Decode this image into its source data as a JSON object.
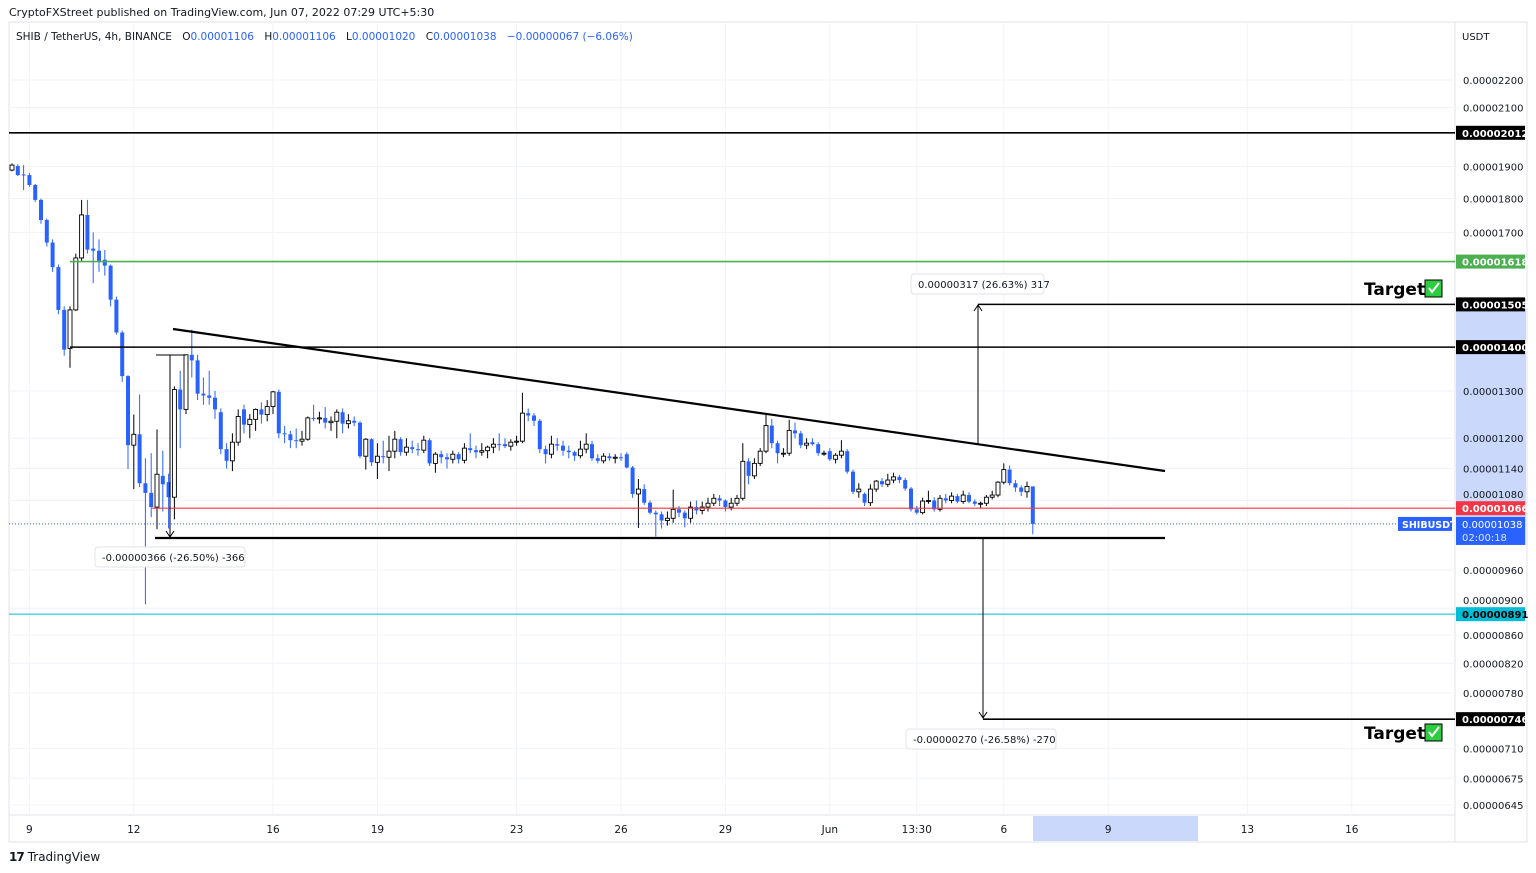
{
  "header": {
    "published": "CryptoFXStreet published on TradingView.com, Jun 07, 2022 07:29 UTC+5:30"
  },
  "legend": {
    "symbol": "SHIB / TetherUS, 4h, BINANCE",
    "o_label": "O",
    "o": "0.00001106",
    "h_label": "H",
    "h": "0.00001106",
    "l_label": "L",
    "l": "0.00001020",
    "c_label": "C",
    "c": "0.00001038",
    "change": "−0.00000067 (−6.06%)"
  },
  "chart_data": {
    "type": "candlestick",
    "timeframe": "4h",
    "y_scale": "log",
    "ylabel": "USDT",
    "grid": true,
    "colors": {
      "up": "#000000",
      "down": "#2962ff",
      "background": "#ffffff"
    },
    "y_ticks": [
      "0.00002200",
      "0.00002100",
      "0.00001900",
      "0.00001800",
      "0.00001700",
      "0.00001300",
      "0.00001200",
      "0.00001140",
      "0.00001080",
      "0.00000960",
      "0.00000900",
      "0.00000860",
      "0.00000820",
      "0.00000780",
      "0.00000710",
      "0.00000675",
      "0.00000645"
    ],
    "x_ticks": [
      "9",
      "12",
      "16",
      "19",
      "23",
      "26",
      "29",
      "Jun",
      "13:30",
      "6",
      "9",
      "13",
      "16"
    ],
    "levels": [
      {
        "price": "0.00002012",
        "color": "#000000"
      },
      {
        "price": "0.00001618",
        "color": "#4caf50"
      },
      {
        "price": "0.00001505",
        "color": "#000000"
      },
      {
        "price": "0.00001400",
        "color": "#000000"
      },
      {
        "price": "0.00001066",
        "color": "#f23645"
      },
      {
        "price": "0.00000891",
        "color": "#00bcd4"
      },
      {
        "price": "0.00000746",
        "color": "#000000"
      }
    ],
    "last_price": {
      "symbol": "SHIBUSDT",
      "price": "0.00001038",
      "countdown": "02:00:18",
      "color": "#2962ff"
    },
    "measures": [
      {
        "label": "-0.00000366 (-26.50%) -366"
      },
      {
        "label": "0.00000317 (26.63%) 317"
      },
      {
        "label": "-0.00000270 (-26.58%) -270"
      }
    ],
    "annotations": [
      {
        "text": "Target",
        "icon": "check-icon"
      },
      {
        "text": "Target",
        "icon": "check-icon"
      }
    ],
    "candles": [
      [
        1.889e-05,
        1.91e-05,
        1.885e-05,
        1.905e-05
      ],
      [
        1.902e-05,
        1.908e-05,
        1.87e-05,
        1.873e-05
      ],
      [
        1.875e-05,
        1.905e-05,
        1.826e-05,
        1.873e-05
      ],
      [
        1.873e-05,
        1.88e-05,
        1.836e-05,
        1.842e-05
      ],
      [
        1.842e-05,
        1.845e-05,
        1.79e-05,
        1.796e-05
      ],
      [
        1.796e-05,
        1.8e-05,
        1.725e-05,
        1.736e-05
      ],
      [
        1.736e-05,
        1.74e-05,
        1.66e-05,
        1.671e-05
      ],
      [
        1.671e-05,
        1.68e-05,
        1.59e-05,
        1.603e-05
      ],
      [
        1.603e-05,
        1.61e-05,
        1.48e-05,
        1.491e-05
      ],
      [
        1.491e-05,
        1.5e-05,
        1.38e-05,
        1.394e-05
      ],
      [
        1.397e-05,
        1.5e-05,
        1.352e-05,
        1.491e-05
      ],
      [
        1.491e-05,
        1.64e-05,
        1.488e-05,
        1.628e-05
      ],
      [
        1.628e-05,
        1.796e-05,
        1.62e-05,
        1.751e-05
      ],
      [
        1.751e-05,
        1.796e-05,
        1.64e-05,
        1.651e-05
      ],
      [
        1.654e-05,
        1.7e-05,
        1.56e-05,
        1.648e-05
      ],
      [
        1.648e-05,
        1.68e-05,
        1.59e-05,
        1.62e-05
      ],
      [
        1.623e-05,
        1.65e-05,
        1.58e-05,
        1.607e-05
      ],
      [
        1.607e-05,
        1.61e-05,
        1.5e-05,
        1.517e-05
      ],
      [
        1.517e-05,
        1.525e-05,
        1.43e-05,
        1.435e-05
      ],
      [
        1.435e-05,
        1.44e-05,
        1.32e-05,
        1.333e-05
      ],
      [
        1.333e-05,
        1.335e-05,
        1.139e-05,
        1.186e-05
      ],
      [
        1.186e-05,
        1.249e-05,
        1.101e-05,
        1.208e-05
      ],
      [
        1.208e-05,
        1.292e-05,
        1.105e-05,
        1.112e-05
      ],
      [
        1.112e-05,
        1.16e-05,
        9.06e-06,
        1.094e-05
      ],
      [
        1.094e-05,
        1.17e-05,
        1.05e-05,
        1.068e-05
      ],
      [
        1.068e-05,
        1.218e-05,
        1.029e-05,
        1.129e-05
      ],
      [
        1.126e-05,
        1.175e-05,
        1.06e-05,
        1.11e-05
      ],
      [
        1.114e-05,
        1.13e-05,
        1.03e-05,
        1.086e-05
      ],
      [
        1.086e-05,
        1.31e-05,
        1.046e-05,
        1.303e-05
      ],
      [
        1.303e-05,
        1.345e-05,
        1.18e-05,
        1.26e-05
      ],
      [
        1.26e-05,
        1.382e-05,
        1.25e-05,
        1.382e-05
      ],
      [
        1.382e-05,
        1.442e-05,
        1.33e-05,
        1.369e-05
      ],
      [
        1.369e-05,
        1.382e-05,
        1.28e-05,
        1.294e-05
      ],
      [
        1.294e-05,
        1.33e-05,
        1.27e-05,
        1.29e-05
      ],
      [
        1.29e-05,
        1.345e-05,
        1.27e-05,
        1.285e-05
      ],
      [
        1.285e-05,
        1.3e-05,
        1.24e-05,
        1.26e-05
      ],
      [
        1.254e-05,
        1.262e-05,
        1.168e-05,
        1.178e-05
      ],
      [
        1.178e-05,
        1.19e-05,
        1.14e-05,
        1.155e-05
      ],
      [
        1.155e-05,
        1.21e-05,
        1.135e-05,
        1.192e-05
      ],
      [
        1.192e-05,
        1.26e-05,
        1.185e-05,
        1.245e-05
      ],
      [
        1.26e-05,
        1.27e-05,
        1.21e-05,
        1.228e-05
      ],
      [
        1.228e-05,
        1.25e-05,
        1.2e-05,
        1.239e-05
      ],
      [
        1.239e-05,
        1.262e-05,
        1.215e-05,
        1.26e-05
      ],
      [
        1.26e-05,
        1.275e-05,
        1.23e-05,
        1.249e-05
      ],
      [
        1.249e-05,
        1.28e-05,
        1.235e-05,
        1.266e-05
      ],
      [
        1.266e-05,
        1.3e-05,
        1.25e-05,
        1.298e-05
      ],
      [
        1.298e-05,
        1.303e-05,
        1.2e-05,
        1.21e-05
      ],
      [
        1.21e-05,
        1.225e-05,
        1.19e-05,
        1.208e-05
      ],
      [
        1.208e-05,
        1.215e-05,
        1.18e-05,
        1.196e-05
      ],
      [
        1.196e-05,
        1.22e-05,
        1.18e-05,
        1.194e-05
      ],
      [
        1.194e-05,
        1.215e-05,
        1.185e-05,
        1.198e-05
      ],
      [
        1.198e-05,
        1.245e-05,
        1.195e-05,
        1.242e-05
      ],
      [
        1.242e-05,
        1.27e-05,
        1.235e-05,
        1.24e-05
      ],
      [
        1.24e-05,
        1.255e-05,
        1.23e-05,
        1.242e-05
      ],
      [
        1.242e-05,
        1.265e-05,
        1.22e-05,
        1.232e-05
      ],
      [
        1.232e-05,
        1.245e-05,
        1.215e-05,
        1.235e-05
      ],
      [
        1.235e-05,
        1.26e-05,
        1.2e-05,
        1.254e-05
      ],
      [
        1.254e-05,
        1.262e-05,
        1.21e-05,
        1.23e-05
      ],
      [
        1.23e-05,
        1.25e-05,
        1.22e-05,
        1.236e-05
      ],
      [
        1.236e-05,
        1.245e-05,
        1.225e-05,
        1.232e-05
      ],
      [
        1.232e-05,
        1.235e-05,
        1.16e-05,
        1.164e-05
      ],
      [
        1.164e-05,
        1.2e-05,
        1.138e-05,
        1.198e-05
      ],
      [
        1.198e-05,
        1.2e-05,
        1.145e-05,
        1.152e-05
      ],
      [
        1.152e-05,
        1.19e-05,
        1.12e-05,
        1.164e-05
      ],
      [
        1.164e-05,
        1.195e-05,
        1.15e-05,
        1.162e-05
      ],
      [
        1.162e-05,
        1.205e-05,
        1.135e-05,
        1.174e-05
      ],
      [
        1.174e-05,
        1.215e-05,
        1.16e-05,
        1.198e-05
      ],
      [
        1.198e-05,
        1.202e-05,
        1.165e-05,
        1.172e-05
      ],
      [
        1.172e-05,
        1.2e-05,
        1.165e-05,
        1.182e-05
      ],
      [
        1.182e-05,
        1.195e-05,
        1.17e-05,
        1.178e-05
      ],
      [
        1.178e-05,
        1.19e-05,
        1.165e-05,
        1.176e-05
      ],
      [
        1.176e-05,
        1.205e-05,
        1.17e-05,
        1.196e-05
      ],
      [
        1.196e-05,
        1.2e-05,
        1.145e-05,
        1.15e-05
      ],
      [
        1.15e-05,
        1.172e-05,
        1.132e-05,
        1.168e-05
      ],
      [
        1.168e-05,
        1.175e-05,
        1.15e-05,
        1.162e-05
      ],
      [
        1.162e-05,
        1.17e-05,
        1.14e-05,
        1.158e-05
      ],
      [
        1.158e-05,
        1.175e-05,
        1.15e-05,
        1.168e-05
      ],
      [
        1.168e-05,
        1.172e-05,
        1.15e-05,
        1.158e-05
      ],
      [
        1.156e-05,
        1.19e-05,
        1.15e-05,
        1.18e-05
      ],
      [
        1.18e-05,
        1.21e-05,
        1.17e-05,
        1.176e-05
      ],
      [
        1.176e-05,
        1.185e-05,
        1.16e-05,
        1.172e-05
      ],
      [
        1.172e-05,
        1.19e-05,
        1.165e-05,
        1.175e-05
      ],
      [
        1.175e-05,
        1.185e-05,
        1.16e-05,
        1.182e-05
      ],
      [
        1.182e-05,
        1.2e-05,
        1.17e-05,
        1.188e-05
      ],
      [
        1.188e-05,
        1.21e-05,
        1.175e-05,
        1.186e-05
      ],
      [
        1.188e-05,
        1.2e-05,
        1.18e-05,
        1.184e-05
      ],
      [
        1.184e-05,
        1.198e-05,
        1.175e-05,
        1.192e-05
      ],
      [
        1.192e-05,
        1.205e-05,
        1.185e-05,
        1.194e-05
      ],
      [
        1.194e-05,
        1.296e-05,
        1.19e-05,
        1.252e-05
      ],
      [
        1.252e-05,
        1.262e-05,
        1.235e-05,
        1.247e-05
      ],
      [
        1.247e-05,
        1.252e-05,
        1.225e-05,
        1.236e-05
      ],
      [
        1.236e-05,
        1.24e-05,
        1.17e-05,
        1.178e-05
      ],
      [
        1.178e-05,
        1.185e-05,
        1.15e-05,
        1.168e-05
      ],
      [
        1.168e-05,
        1.205e-05,
        1.16e-05,
        1.188e-05
      ],
      [
        1.188e-05,
        1.2e-05,
        1.175e-05,
        1.185e-05
      ],
      [
        1.185e-05,
        1.195e-05,
        1.165e-05,
        1.175e-05
      ],
      [
        1.175e-05,
        1.185e-05,
        1.16e-05,
        1.172e-05
      ],
      [
        1.172e-05,
        1.175e-05,
        1.155e-05,
        1.165e-05
      ],
      [
        1.165e-05,
        1.195e-05,
        1.16e-05,
        1.178e-05
      ],
      [
        1.178e-05,
        1.21e-05,
        1.17e-05,
        1.188e-05
      ],
      [
        1.188e-05,
        1.195e-05,
        1.155e-05,
        1.16e-05
      ],
      [
        1.16e-05,
        1.168e-05,
        1.15e-05,
        1.155e-05
      ],
      [
        1.155e-05,
        1.17e-05,
        1.15e-05,
        1.164e-05
      ],
      [
        1.164e-05,
        1.17e-05,
        1.155e-05,
        1.16e-05
      ],
      [
        1.16e-05,
        1.168e-05,
        1.15e-05,
        1.162e-05
      ],
      [
        1.162e-05,
        1.17e-05,
        1.155e-05,
        1.16e-05
      ],
      [
        1.168e-05,
        1.172e-05,
        1.14e-05,
        1.142e-05
      ],
      [
        1.142e-05,
        1.145e-05,
        1.085e-05,
        1.092e-05
      ],
      [
        1.092e-05,
        1.12e-05,
        1.031e-05,
        1.101e-05
      ],
      [
        1.101e-05,
        1.11e-05,
        1.072e-05,
        1.076e-05
      ],
      [
        1.076e-05,
        1.08e-05,
        1.055e-05,
        1.058e-05
      ],
      [
        1.058e-05,
        1.062e-05,
        1.016e-05,
        1.055e-05
      ],
      [
        1.055e-05,
        1.06e-05,
        1.03e-05,
        1.044e-05
      ],
      [
        1.044e-05,
        1.06e-05,
        1.035e-05,
        1.048e-05
      ],
      [
        1.048e-05,
        1.1e-05,
        1.04e-05,
        1.064e-05
      ],
      [
        1.064e-05,
        1.07e-05,
        1.05e-05,
        1.058e-05
      ],
      [
        1.058e-05,
        1.062e-05,
        1.032e-05,
        1.048e-05
      ],
      [
        1.048e-05,
        1.078e-05,
        1.04e-05,
        1.068e-05
      ],
      [
        1.068e-05,
        1.08e-05,
        1.055e-05,
        1.062e-05
      ],
      [
        1.062e-05,
        1.078e-05,
        1.055e-05,
        1.068e-05
      ],
      [
        1.068e-05,
        1.085e-05,
        1.06e-05,
        1.075e-05
      ],
      [
        1.075e-05,
        1.092e-05,
        1.07e-05,
        1.084e-05
      ],
      [
        1.084e-05,
        1.09e-05,
        1.07e-05,
        1.08e-05
      ],
      [
        1.08e-05,
        1.082e-05,
        1.06e-05,
        1.068e-05
      ],
      [
        1.068e-05,
        1.085e-05,
        1.062e-05,
        1.075e-05
      ],
      [
        1.075e-05,
        1.09e-05,
        1.07e-05,
        1.084e-05
      ],
      [
        1.084e-05,
        1.19e-05,
        1.08e-05,
        1.154e-05
      ],
      [
        1.154e-05,
        1.16e-05,
        1.11e-05,
        1.126e-05
      ],
      [
        1.126e-05,
        1.16e-05,
        1.12e-05,
        1.15e-05
      ],
      [
        1.15e-05,
        1.18e-05,
        1.145e-05,
        1.174e-05
      ],
      [
        1.174e-05,
        1.249e-05,
        1.17e-05,
        1.226e-05
      ],
      [
        1.226e-05,
        1.24e-05,
        1.18e-05,
        1.19e-05
      ],
      [
        1.19e-05,
        1.195e-05,
        1.15e-05,
        1.17e-05
      ],
      [
        1.17e-05,
        1.18e-05,
        1.162e-05,
        1.17e-05
      ],
      [
        1.17e-05,
        1.238e-05,
        1.165e-05,
        1.216e-05
      ],
      [
        1.216e-05,
        1.232e-05,
        1.2e-05,
        1.21e-05
      ],
      [
        1.21e-05,
        1.215e-05,
        1.18e-05,
        1.186e-05
      ],
      [
        1.186e-05,
        1.2e-05,
        1.178e-05,
        1.19e-05
      ],
      [
        1.192e-05,
        1.2e-05,
        1.185e-05,
        1.188e-05
      ],
      [
        1.188e-05,
        1.192e-05,
        1.165e-05,
        1.17e-05
      ],
      [
        1.17e-05,
        1.175e-05,
        1.165e-05,
        1.17e-05
      ],
      [
        1.174e-05,
        1.18e-05,
        1.155e-05,
        1.158e-05
      ],
      [
        1.158e-05,
        1.17e-05,
        1.15e-05,
        1.166e-05
      ],
      [
        1.166e-05,
        1.196e-05,
        1.16e-05,
        1.174e-05
      ],
      [
        1.174e-05,
        1.178e-05,
        1.13e-05,
        1.134e-05
      ],
      [
        1.134e-05,
        1.138e-05,
        1.092e-05,
        1.096e-05
      ],
      [
        1.096e-05,
        1.112e-05,
        1.085e-05,
        1.101e-05
      ],
      [
        1.092e-05,
        1.095e-05,
        1.07e-05,
        1.076e-05
      ],
      [
        1.076e-05,
        1.11e-05,
        1.07e-05,
        1.101e-05
      ],
      [
        1.101e-05,
        1.118e-05,
        1.096e-05,
        1.116e-05
      ],
      [
        1.116e-05,
        1.122e-05,
        1.105e-05,
        1.11e-05
      ],
      [
        1.11e-05,
        1.13e-05,
        1.105e-05,
        1.118e-05
      ],
      [
        1.118e-05,
        1.132e-05,
        1.112e-05,
        1.124e-05
      ],
      [
        1.124e-05,
        1.128e-05,
        1.112e-05,
        1.118e-05
      ],
      [
        1.118e-05,
        1.122e-05,
        1.098e-05,
        1.102e-05
      ],
      [
        1.102e-05,
        1.105e-05,
        1.06e-05,
        1.064e-05
      ],
      [
        1.064e-05,
        1.07e-05,
        1.055e-05,
        1.058e-05
      ],
      [
        1.058e-05,
        1.085e-05,
        1.055e-05,
        1.079e-05
      ],
      [
        1.079e-05,
        1.098e-05,
        1.074e-05,
        1.08e-05
      ],
      [
        1.08e-05,
        1.086e-05,
        1.06e-05,
        1.064e-05
      ],
      [
        1.064e-05,
        1.09e-05,
        1.06e-05,
        1.084e-05
      ],
      [
        1.084e-05,
        1.092e-05,
        1.075e-05,
        1.08e-05
      ],
      [
        1.08e-05,
        1.095e-05,
        1.075e-05,
        1.088e-05
      ],
      [
        1.088e-05,
        1.092e-05,
        1.075e-05,
        1.078e-05
      ],
      [
        1.078e-05,
        1.098e-05,
        1.074e-05,
        1.09e-05
      ],
      [
        1.09e-05,
        1.095e-05,
        1.075e-05,
        1.078e-05
      ],
      [
        1.078e-05,
        1.082e-05,
        1.07e-05,
        1.074e-05
      ],
      [
        1.074e-05,
        1.078e-05,
        1.066e-05,
        1.075e-05
      ],
      [
        1.075e-05,
        1.09e-05,
        1.07e-05,
        1.086e-05
      ],
      [
        1.086e-05,
        1.098e-05,
        1.082e-05,
        1.09e-05
      ],
      [
        1.09e-05,
        1.116e-05,
        1.086e-05,
        1.114e-05
      ],
      [
        1.114e-05,
        1.15e-05,
        1.11e-05,
        1.138e-05
      ],
      [
        1.138e-05,
        1.146e-05,
        1.108e-05,
        1.112e-05
      ],
      [
        1.112e-05,
        1.118e-05,
        1.096e-05,
        1.104e-05
      ],
      [
        1.104e-05,
        1.108e-05,
        1.088e-05,
        1.096e-05
      ],
      [
        1.096e-05,
        1.115e-05,
        1.085e-05,
        1.106e-05
      ],
      [
        1.106e-05,
        1.106e-05,
        1.02e-05,
        1.038e-05
      ]
    ]
  },
  "footer": {
    "logo_mark": "17",
    "logo_text": "TradingView"
  }
}
